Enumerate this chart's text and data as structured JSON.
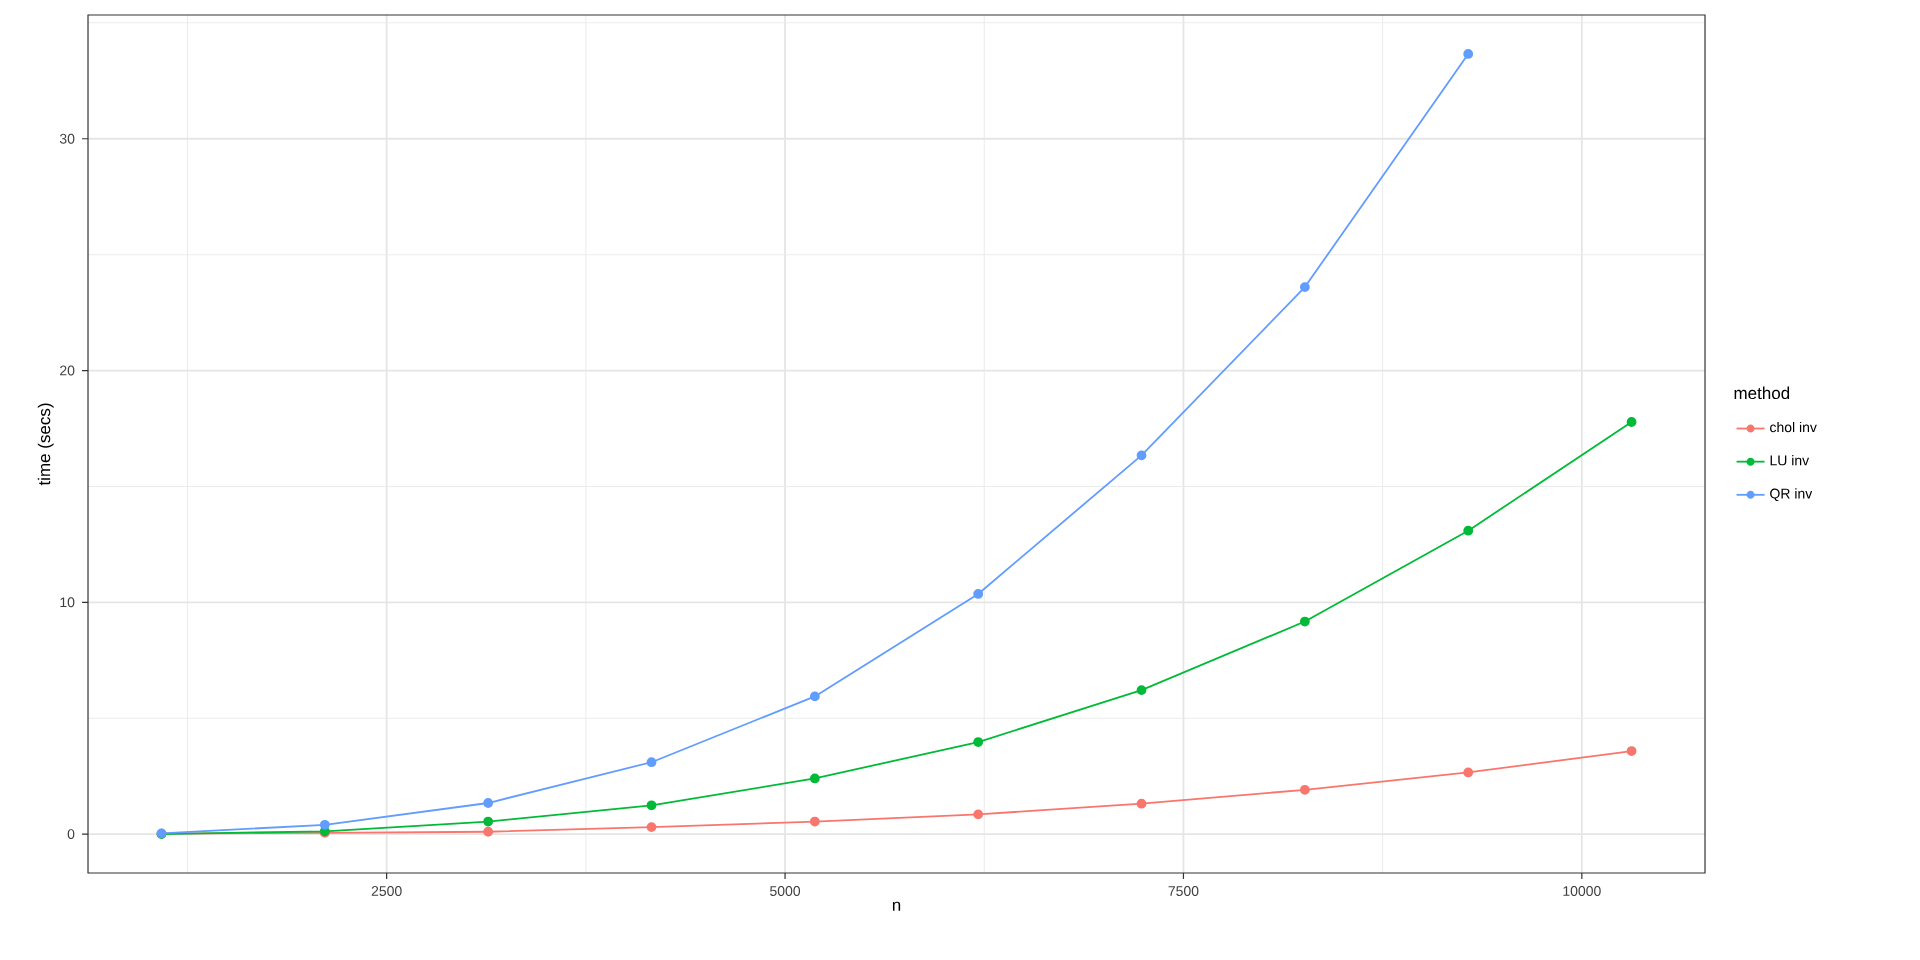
{
  "chart_data": {
    "type": "line",
    "xlabel": "n",
    "ylabel": "time (secs)",
    "legend_title": "method",
    "legend": "right",
    "grid": true,
    "marker": "circle",
    "line_style": "solid",
    "x": [
      1087,
      2112,
      3137,
      4162,
      5187,
      6212,
      7237,
      8262,
      9287,
      10312
    ],
    "xlim": [
      626,
      10773
    ],
    "ylim": [
      -1.68,
      35.34
    ],
    "xticks": [
      2500,
      5000,
      7500,
      10000
    ],
    "yticks": [
      0,
      10,
      20,
      30
    ],
    "series": [
      {
        "name": "chol inv",
        "color": "#f8766d",
        "values": [
          0.02,
          0.05,
          0.1,
          0.3,
          0.54,
          0.85,
          1.31,
          1.91,
          2.66,
          3.58
        ]
      },
      {
        "name": "LU inv",
        "color": "#00ba38",
        "values": [
          0,
          0.12,
          0.54,
          1.24,
          2.4,
          3.97,
          6.21,
          9.17,
          13.09,
          17.78
        ]
      },
      {
        "name": "QR inv",
        "color": "#619cff",
        "x": [
          1087,
          2112,
          3137,
          4162,
          5187,
          6212,
          7237,
          8262,
          9287
        ],
        "values": [
          0.03,
          0.4,
          1.34,
          3.1,
          5.94,
          10.36,
          16.34,
          23.6,
          33.66
        ]
      }
    ]
  }
}
